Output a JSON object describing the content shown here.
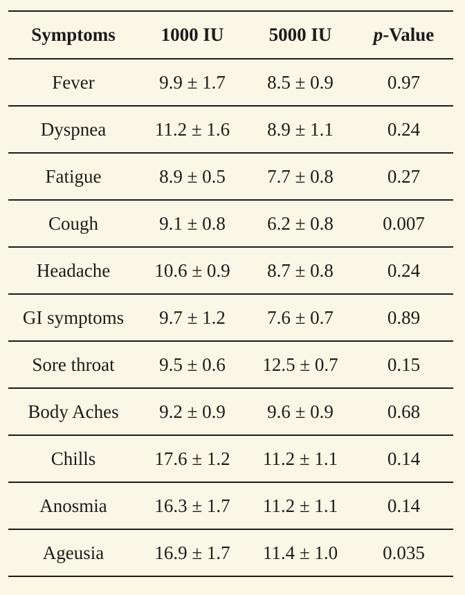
{
  "page": {
    "background_color": "#fbf7e6",
    "text_color": "#1b1b1b",
    "rule_color": "#1b1b1b"
  },
  "chart_data": {
    "type": "table",
    "title": "",
    "columns": [
      "Symptoms",
      "1000 IU",
      "5000 IU",
      "p-Value"
    ],
    "rows": [
      {
        "symptom": "Fever",
        "dose1000": "9.9 ± 1.7",
        "dose5000": "8.5 ± 0.9",
        "p": "0.97"
      },
      {
        "symptom": "Dyspnea",
        "dose1000": "11.2 ± 1.6",
        "dose5000": "8.9 ± 1.1",
        "p": "0.24"
      },
      {
        "symptom": "Fatigue",
        "dose1000": "8.9 ± 0.5",
        "dose5000": "7.7 ± 0.8",
        "p": "0.27"
      },
      {
        "symptom": "Cough",
        "dose1000": "9.1 ± 0.8",
        "dose5000": "6.2 ± 0.8",
        "p": "0.007"
      },
      {
        "symptom": "Headache",
        "dose1000": "10.6 ± 0.9",
        "dose5000": "8.7 ± 0.8",
        "p": "0.24"
      },
      {
        "symptom": "GI symptoms",
        "dose1000": "9.7 ± 1.2",
        "dose5000": "7.6 ± 0.7",
        "p": "0.89"
      },
      {
        "symptom": "Sore throat",
        "dose1000": "9.5 ± 0.6",
        "dose5000": "12.5 ± 0.7",
        "p": "0.15"
      },
      {
        "symptom": "Body Aches",
        "dose1000": "9.2 ± 0.9",
        "dose5000": "9.6 ± 0.9",
        "p": "0.68"
      },
      {
        "symptom": "Chills",
        "dose1000": "17.6 ± 1.2",
        "dose5000": "11.2 ± 1.1",
        "p": "0.14"
      },
      {
        "symptom": "Anosmia",
        "dose1000": "16.3 ± 1.7",
        "dose5000": "11.2 ± 1.1",
        "p": "0.14"
      },
      {
        "symptom": "Ageusia",
        "dose1000": "16.9 ± 1.7",
        "dose5000": "11.4 ± 1.0",
        "p": "0.035"
      }
    ]
  },
  "table": {
    "headers": {
      "symptoms": "Symptoms",
      "dose1": "1000 IU",
      "dose2": "5000 IU",
      "p_italic": "p",
      "p_rest": "-Value"
    }
  }
}
